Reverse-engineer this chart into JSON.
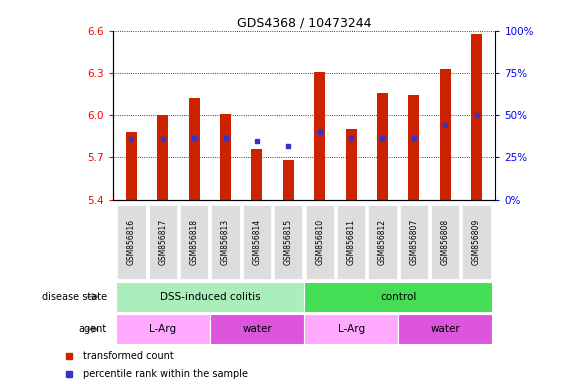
{
  "title": "GDS4368 / 10473244",
  "samples": [
    "GSM856816",
    "GSM856817",
    "GSM856818",
    "GSM856813",
    "GSM856814",
    "GSM856815",
    "GSM856810",
    "GSM856811",
    "GSM856812",
    "GSM856807",
    "GSM856808",
    "GSM856809"
  ],
  "bar_values": [
    5.88,
    6.0,
    6.12,
    6.01,
    5.76,
    5.68,
    6.31,
    5.9,
    6.16,
    6.14,
    6.33,
    6.58
  ],
  "percentile_values": [
    5.83,
    5.83,
    5.84,
    5.84,
    5.82,
    5.78,
    5.88,
    5.84,
    5.84,
    5.84,
    5.93,
    6.0
  ],
  "ymin": 5.4,
  "ymax": 6.6,
  "yticks": [
    5.4,
    5.7,
    6.0,
    6.3,
    6.6
  ],
  "right_yticks_labels": [
    "0%",
    "25%",
    "50%",
    "75%",
    "100%"
  ],
  "right_ytick_positions": [
    5.4,
    5.7,
    6.0,
    6.3,
    6.6
  ],
  "bar_color": "#CC2200",
  "dot_color": "#3333CC",
  "tick_label_bg": "#DDDDDD",
  "disease_state_groups": [
    {
      "label": "DSS-induced colitis",
      "start": 0,
      "end": 6,
      "color": "#AAEEBB"
    },
    {
      "label": "control",
      "start": 6,
      "end": 12,
      "color": "#44DD55"
    }
  ],
  "agent_groups": [
    {
      "label": "L-Arg",
      "start": 0,
      "end": 3,
      "color": "#FFAAFF"
    },
    {
      "label": "water",
      "start": 3,
      "end": 6,
      "color": "#DD55DD"
    },
    {
      "label": "L-Arg",
      "start": 6,
      "end": 9,
      "color": "#FFAAFF"
    },
    {
      "label": "water",
      "start": 9,
      "end": 12,
      "color": "#DD55DD"
    }
  ],
  "legend_items": [
    {
      "label": "transformed count",
      "color": "#CC2200"
    },
    {
      "label": "percentile rank within the sample",
      "color": "#3333CC"
    }
  ],
  "left_labels": [
    {
      "text": "disease state",
      "row": "disease"
    },
    {
      "text": "agent",
      "row": "agent"
    }
  ]
}
